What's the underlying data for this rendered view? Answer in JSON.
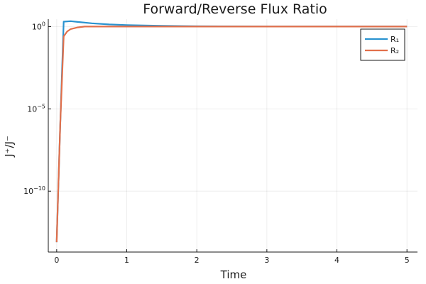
{
  "chart_data": {
    "type": "line",
    "title": "Forward/Reverse Flux Ratio",
    "xlabel": "Time",
    "ylabel": "J⁺/J⁻",
    "y_scale": "log10",
    "xlim": [
      -0.12,
      5.15
    ],
    "ylim_log10": [
      -13.7,
      0.45
    ],
    "grid": true,
    "legend_position": "top-right",
    "x_ticks": [
      {
        "value": 0,
        "label": "0"
      },
      {
        "value": 1,
        "label": "1"
      },
      {
        "value": 2,
        "label": "2"
      },
      {
        "value": 3,
        "label": "3"
      },
      {
        "value": 4,
        "label": "4"
      },
      {
        "value": 5,
        "label": "5"
      }
    ],
    "y_ticks": [
      {
        "log10": 0,
        "base": "10",
        "exp": "0"
      },
      {
        "log10": -5,
        "base": "10",
        "exp": "−5"
      },
      {
        "log10": -10,
        "base": "10",
        "exp": "−10"
      }
    ],
    "series": [
      {
        "name": "R₁",
        "color": "#2a93d0",
        "x": [
          0,
          0.05,
          0.1,
          0.2,
          0.3,
          0.5,
          0.75,
          1.0,
          1.5,
          2.0,
          3.0,
          4.0,
          5.0
        ],
        "log10_y": [
          -13.1,
          -6.0,
          0.3,
          0.33,
          0.28,
          0.2,
          0.13,
          0.09,
          0.05,
          0.02,
          0.0,
          0.0,
          0.0
        ]
      },
      {
        "name": "R₂",
        "color": "#e2704b",
        "x": [
          0,
          0.05,
          0.1,
          0.15,
          0.2,
          0.3,
          0.4,
          0.6,
          1.0,
          2.0,
          3.0,
          4.0,
          5.0
        ],
        "log10_y": [
          -13.1,
          -6.0,
          -0.6,
          -0.3,
          -0.15,
          -0.05,
          0.0,
          0.0,
          0.0,
          0.0,
          0.0,
          0.0,
          0.0
        ]
      }
    ]
  }
}
